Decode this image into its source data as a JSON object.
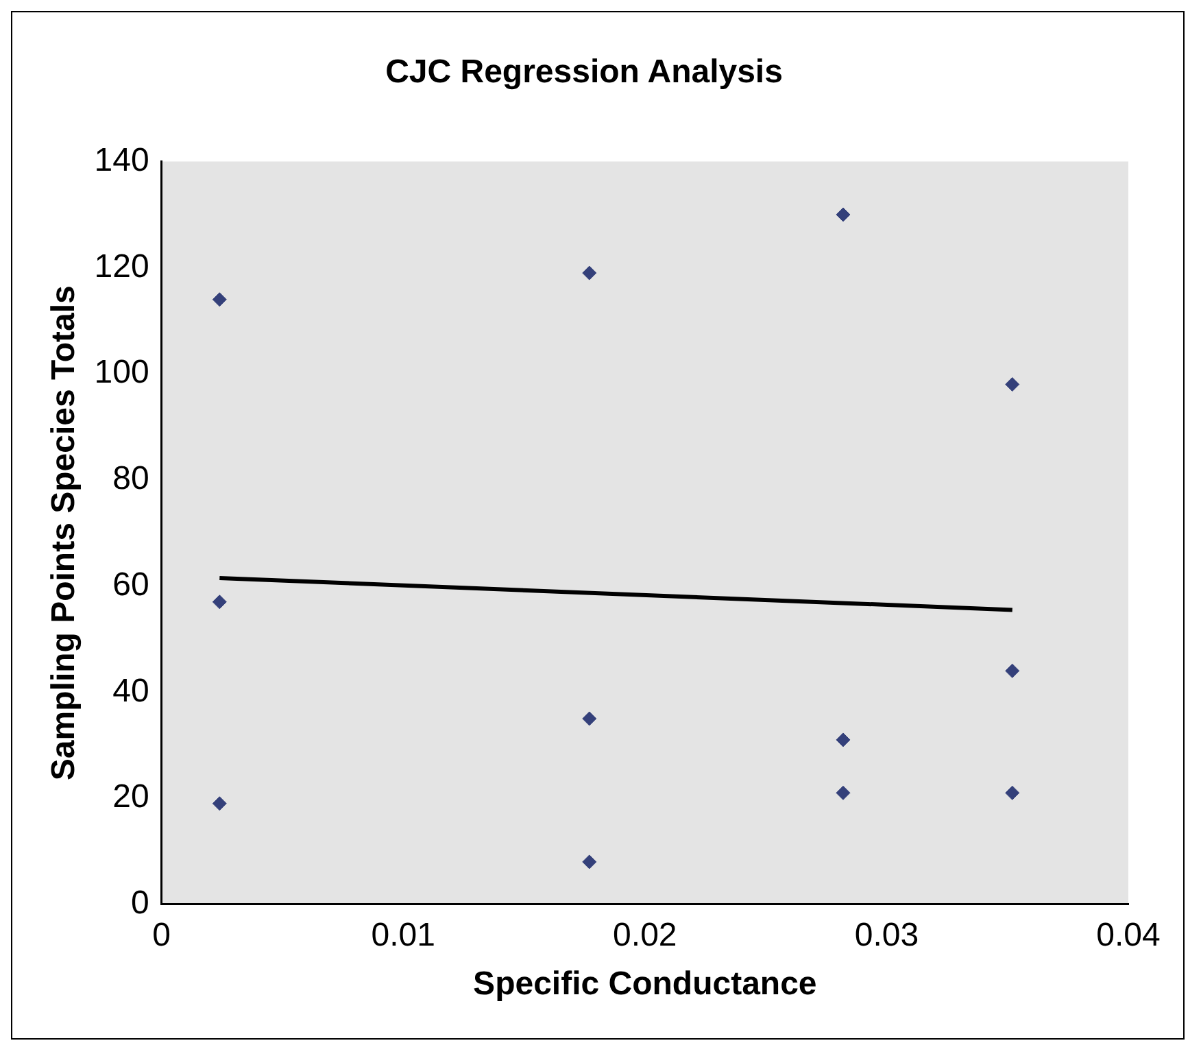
{
  "chart_data": {
    "type": "scatter",
    "title": "CJC Regression Analysis",
    "xlabel": "Specific Conductance",
    "ylabel": "Sampling Points Species Totals",
    "xlim": [
      0,
      0.04
    ],
    "xticks": [
      0,
      0.01,
      0.02,
      0.03,
      0.04
    ],
    "ylim": [
      0,
      140
    ],
    "yticks": [
      0,
      20,
      40,
      60,
      80,
      100,
      120,
      140
    ],
    "legend": false,
    "grid": false,
    "series": [
      {
        "color": "#34407a",
        "marker": "diamond",
        "x": [
          0.0024,
          0.0024,
          0.0024,
          0.0177,
          0.0177,
          0.0177,
          0.0282,
          0.0282,
          0.0282,
          0.0352,
          0.0352,
          0.0352
        ],
        "values": [
          114,
          57,
          19,
          119,
          35,
          8,
          130,
          31,
          21,
          98,
          44,
          21
        ]
      },
      {
        "type": "line",
        "color": "#000000",
        "marker": "none",
        "x": [
          0.0024,
          0.0352
        ],
        "values": [
          61.5,
          55.5
        ]
      }
    ]
  }
}
